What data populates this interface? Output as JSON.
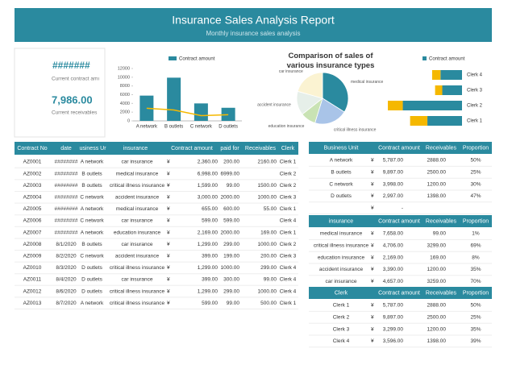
{
  "header": {
    "title": "Insurance Sales Analysis Report",
    "subtitle": "Monthly insurance sales analysis"
  },
  "kpis": [
    {
      "value": "#######",
      "label": "Current contract amı"
    },
    {
      "value": "7,986.00",
      "label": "Current receivables"
    }
  ],
  "currency": "¥",
  "chart_data": [
    {
      "type": "bar",
      "categories": [
        "A network",
        "B outlets",
        "C network",
        "D outlets"
      ],
      "series": [
        {
          "name": "Contract amount",
          "color": "#2a8a9f",
          "values": [
            5787,
            9897,
            3998,
            2997
          ]
        },
        {
          "type": "line",
          "color": "#f5b800",
          "values": [
            2888,
            2500,
            1200,
            1398
          ]
        }
      ],
      "ylim": [
        0,
        12000
      ],
      "yticks": [
        0,
        2000,
        4000,
        6000,
        8000,
        10000,
        12000
      ]
    },
    {
      "type": "pie",
      "title": "Comparison of sales of various insurance types",
      "categories": [
        "medical insurance",
        "critical illness insurance",
        "education insurance",
        "accident insurance",
        "car insurance"
      ],
      "values": [
        7658,
        4706,
        2169,
        3390,
        4657
      ],
      "colors": [
        "#2a8a9f",
        "#a9c4e8",
        "#c9e3b4",
        "#e6efe9",
        "#fbf3d2"
      ]
    },
    {
      "type": "stacked-bar-horizontal",
      "categories": [
        "Clerk 4",
        "Clerk 3",
        "Clerk 2",
        "Clerk 1"
      ],
      "series": [
        {
          "name": "Contract amount",
          "color": "#2a8a9f",
          "values": [
            3596,
            3299,
            9897,
            5787
          ]
        },
        {
          "color": "#f5b800",
          "values": [
            1398,
            1200,
            2500,
            2888
          ]
        }
      ]
    }
  ],
  "main_table": {
    "columns": [
      "Contract No",
      "date",
      "usiness Ur",
      "insurance",
      "Contract amount",
      "paid for",
      "Receivables",
      "Clerk"
    ],
    "rows": [
      [
        "AZ0001",
        "########",
        "A network",
        "car insurance",
        "2,360.00",
        "200.00",
        "2160.00",
        "Clerk 1"
      ],
      [
        "AZ0002",
        "########",
        "B outlets",
        "medical insurance",
        "6,998.00",
        "6999.00",
        null,
        "Clerk 2"
      ],
      [
        "AZ0003",
        "########",
        "B outlets",
        "critical illness insurance",
        "1,599.00",
        "99.00",
        "1500.00",
        "Clerk 2"
      ],
      [
        "AZ0004",
        "########",
        "C network",
        "accident insurance",
        "3,000.00",
        "2000.00",
        "1000.00",
        "Clerk 3"
      ],
      [
        "AZ0005",
        "########",
        "A network",
        "medical insurance",
        "655.00",
        "600.00",
        "55.00",
        "Clerk 1"
      ],
      [
        "AZ0006",
        "########",
        "C network",
        "car insurance",
        "599.00",
        "599.00",
        null,
        "Clerk 4"
      ],
      [
        "AZ0007",
        "########",
        "A network",
        "education insurance",
        "2,169.00",
        "2000.00",
        "169.00",
        "Clerk 1"
      ],
      [
        "AZ0008",
        "8/1/2020",
        "B outlets",
        "car insurance",
        "1,299.00",
        "299.00",
        "1000.00",
        "Clerk 2"
      ],
      [
        "AZ0009",
        "8/2/2020",
        "C network",
        "accident insurance",
        "399.00",
        "199.00",
        "200.00",
        "Clerk 3"
      ],
      [
        "AZ0010",
        "8/3/2020",
        "D outlets",
        "critical illness insurance",
        "1,299.00",
        "1000.00",
        "299.00",
        "Clerk 4"
      ],
      [
        "AZ0011",
        "8/4/2020",
        "D outlets",
        "car insurance",
        "399.00",
        "300.00",
        "99.00",
        "Clerk 4"
      ],
      [
        "AZ0012",
        "8/6/2020",
        "D outlets",
        "critical illness insurance",
        "1,299.00",
        "299.00",
        "1000.00",
        "Clerk 4"
      ],
      [
        "AZ0013",
        "8/7/2020",
        "A network",
        "critical illness insurance",
        "599.00",
        "99.00",
        "500.00",
        "Clerk 1"
      ]
    ]
  },
  "summary_tables": [
    {
      "columns": [
        "Business Unit",
        "Contract amount",
        "Receivables",
        "Proportion"
      ],
      "rows": [
        [
          "A network",
          "5,787.00",
          "2888.00",
          "50%"
        ],
        [
          "B outlets",
          "9,897.00",
          "2500.00",
          "25%"
        ],
        [
          "C network",
          "3,998.00",
          "1200.00",
          "30%"
        ],
        [
          "D outlets",
          "2,997.00",
          "1398.00",
          "47%"
        ],
        [
          null,
          "-",
          null,
          null
        ]
      ]
    },
    {
      "columns": [
        "insurance",
        "Contract amount",
        "Receivables",
        "Proportion"
      ],
      "rows": [
        [
          "medical insurance",
          "7,658.00",
          "99.00",
          "1%"
        ],
        [
          "critical illness insurance",
          "4,706.00",
          "3299.00",
          "69%"
        ],
        [
          "education insurance",
          "2,169.00",
          "169.00",
          "8%"
        ],
        [
          "accident insurance",
          "3,390.00",
          "1200.00",
          "35%"
        ],
        [
          "car insurance",
          "4,657.00",
          "3259.00",
          "70%"
        ]
      ]
    },
    {
      "columns": [
        "Clerk",
        "Contract amount",
        "Receivables",
        "Proportion"
      ],
      "rows": [
        [
          "Clerk 1",
          "5,787.00",
          "2888.00",
          "50%"
        ],
        [
          "Clerk 2",
          "9,897.00",
          "2500.00",
          "25%"
        ],
        [
          "Clerk 3",
          "3,299.00",
          "1200.00",
          "35%"
        ],
        [
          "Clerk 4",
          "3,596.00",
          "1398.00",
          "39%"
        ]
      ]
    }
  ]
}
